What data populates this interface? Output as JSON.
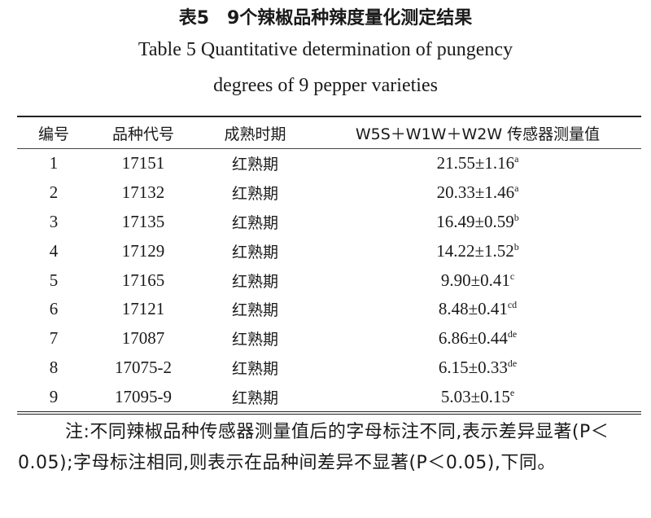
{
  "title_cn": "表5　9个辣椒品种辣度量化测定结果",
  "title_en_line1": "Table 5 Quantitative determination of pungency",
  "title_en_line2": "degrees of 9 pepper varieties",
  "table": {
    "headers": [
      "编号",
      "品种代号",
      "成熟时期",
      "W5S＋W1W＋W2W 传感器测量值"
    ],
    "rows": [
      {
        "no": "1",
        "code": "17151",
        "stage": "红熟期",
        "value": "21.55±1.16",
        "sig": "a"
      },
      {
        "no": "2",
        "code": "17132",
        "stage": "红熟期",
        "value": "20.33±1.46",
        "sig": "a"
      },
      {
        "no": "3",
        "code": "17135",
        "stage": "红熟期",
        "value": "16.49±0.59",
        "sig": "b"
      },
      {
        "no": "4",
        "code": "17129",
        "stage": "红熟期",
        "value": "14.22±1.52",
        "sig": "b"
      },
      {
        "no": "5",
        "code": "17165",
        "stage": "红熟期",
        "value": "9.90±0.41",
        "sig": "c"
      },
      {
        "no": "6",
        "code": "17121",
        "stage": "红熟期",
        "value": "8.48±0.41",
        "sig": "cd"
      },
      {
        "no": "7",
        "code": "17087",
        "stage": "红熟期",
        "value": "6.86±0.44",
        "sig": "de"
      },
      {
        "no": "8",
        "code": "17075-2",
        "stage": "红熟期",
        "value": "6.15±0.33",
        "sig": "de"
      },
      {
        "no": "9",
        "code": "17095-9",
        "stage": "红熟期",
        "value": "5.03±0.15",
        "sig": "e"
      }
    ]
  },
  "note": "注:不同辣椒品种传感器测量值后的字母标注不同,表示差异显著(P＜0.05);字母标注相同,则表示在品种间差异不显著(P＜0.05),下同。"
}
